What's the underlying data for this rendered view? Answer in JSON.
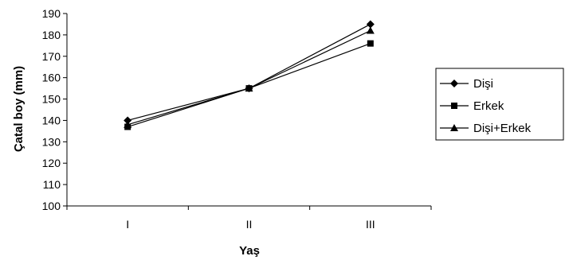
{
  "chart_data": {
    "type": "line",
    "categories": [
      "I",
      "II",
      "III"
    ],
    "series": [
      {
        "name": "Dişi",
        "marker": "diamond",
        "values": [
          140,
          155,
          185
        ]
      },
      {
        "name": "Erkek",
        "marker": "square",
        "values": [
          137,
          155,
          176
        ]
      },
      {
        "name": "Dişi+Erkek",
        "marker": "triangle",
        "values": [
          138,
          155,
          182
        ]
      }
    ],
    "xlabel": "Yaş",
    "ylabel": "Çatal boy (mm)",
    "ylim": [
      100,
      190
    ],
    "yticks": [
      100,
      110,
      120,
      130,
      140,
      150,
      160,
      170,
      180,
      190
    ],
    "grid": false,
    "legend": "right",
    "line_color": "#000000"
  }
}
